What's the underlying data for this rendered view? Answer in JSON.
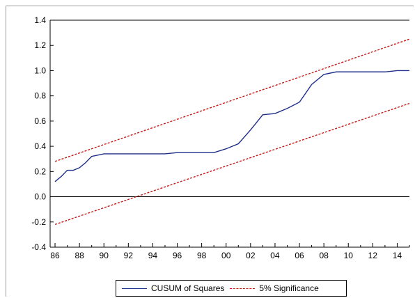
{
  "chart_data": {
    "type": "line",
    "title": "",
    "xlabel": "",
    "ylabel": "",
    "xlim": [
      1985.6,
      2015.0
    ],
    "ylim": [
      -0.4,
      1.4
    ],
    "grid": false,
    "legend_position": "bottom-center",
    "x_ticks": [
      1986,
      1988,
      1990,
      1992,
      1994,
      1996,
      1998,
      2000,
      2002,
      2004,
      2006,
      2008,
      2010,
      2012,
      2014
    ],
    "x_tick_labels": [
      "86",
      "88",
      "90",
      "92",
      "94",
      "96",
      "98",
      "00",
      "02",
      "04",
      "06",
      "08",
      "10",
      "12",
      "14"
    ],
    "y_ticks": [
      -0.4,
      -0.2,
      0.0,
      0.2,
      0.4,
      0.6,
      0.8,
      1.0,
      1.2,
      1.4
    ],
    "y_tick_labels": [
      "-0.4",
      "-0.2",
      "0.0",
      "0.2",
      "0.4",
      "0.6",
      "0.8",
      "1.0",
      "1.2",
      "1.4"
    ],
    "reference_lines": [
      0.0
    ],
    "series": [
      {
        "name": "CUSUM of Squares",
        "style": "solid",
        "color": "#1f2e8a",
        "x": [
          1986,
          1986.5,
          1987,
          1987.5,
          1988,
          1988.5,
          1989,
          1989.5,
          1990,
          1991,
          1992,
          1993,
          1994,
          1995,
          1996,
          1997,
          1998,
          1999,
          2000,
          2001,
          2002,
          2003,
          2004,
          2005,
          2006,
          2007,
          2008,
          2009,
          2010,
          2011,
          2012,
          2013,
          2014,
          2015
        ],
        "y": [
          0.12,
          0.16,
          0.21,
          0.21,
          0.23,
          0.27,
          0.32,
          0.33,
          0.34,
          0.34,
          0.34,
          0.34,
          0.34,
          0.34,
          0.35,
          0.35,
          0.35,
          0.35,
          0.38,
          0.42,
          0.53,
          0.65,
          0.66,
          0.7,
          0.75,
          0.89,
          0.97,
          0.99,
          0.99,
          0.99,
          0.99,
          0.99,
          1.0,
          1.0
        ]
      },
      {
        "name": "5% Significance",
        "style": "dashed",
        "color": "#c41b1b",
        "x": [
          1986,
          2015
        ],
        "y": [
          0.28,
          1.25
        ]
      },
      {
        "name": "",
        "style": "dashed",
        "color": "#c41b1b",
        "x": [
          1986,
          2015
        ],
        "y": [
          -0.22,
          0.74
        ]
      }
    ]
  }
}
